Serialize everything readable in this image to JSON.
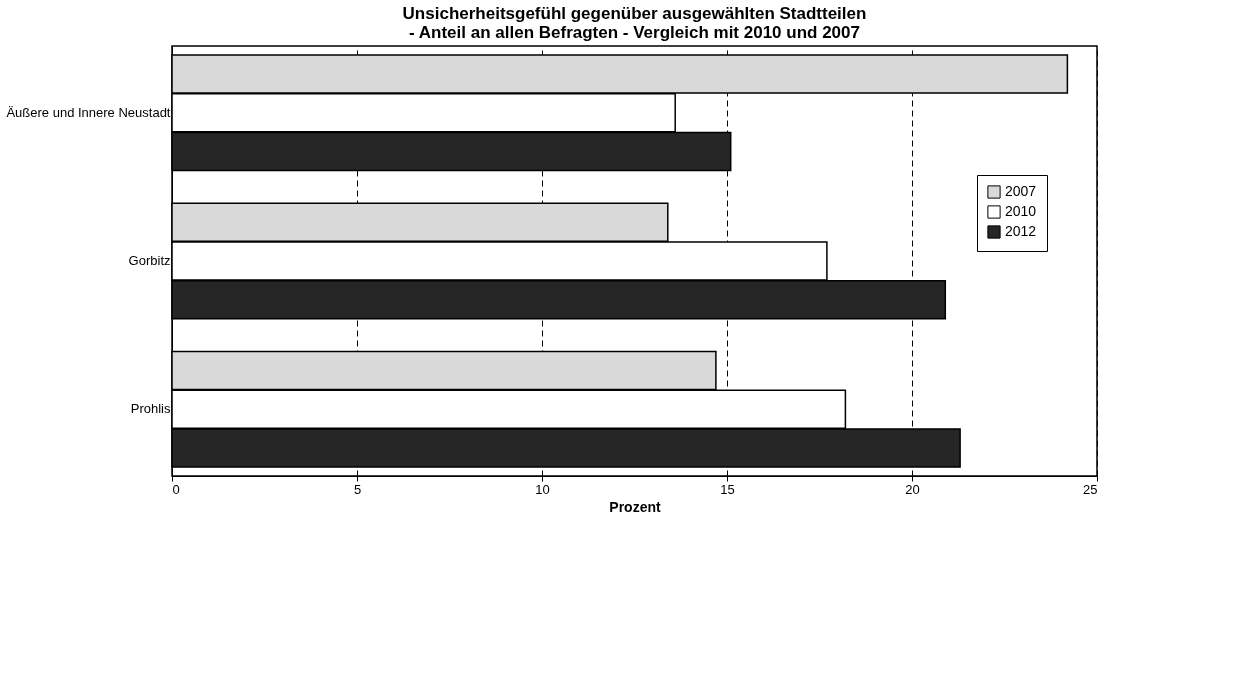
{
  "chart_data": {
    "type": "bar",
    "orientation": "horizontal",
    "title": [
      "Unsicherheitsgefühl gegenüber ausgewählten Stadtteilen",
      "- Anteil an allen Befragten - Vergleich mit 2010 und 2007"
    ],
    "xlabel": "Prozent",
    "categories": [
      "Äußere und Innere Neustadt",
      "Gorbitz",
      "Prohlis"
    ],
    "series": [
      {
        "name": "2007",
        "color": "#d9d9d9",
        "values": [
          24.2,
          13.4,
          14.7
        ]
      },
      {
        "name": "2010",
        "color": "#ffffff",
        "values": [
          13.6,
          17.7,
          18.2
        ]
      },
      {
        "name": "2012",
        "color": "#262626",
        "values": [
          15.1,
          20.9,
          21.3
        ]
      }
    ],
    "xlim": [
      0,
      25
    ],
    "xticks": [
      0,
      5,
      10,
      15,
      20,
      25
    ],
    "grid": "x",
    "legend": "right"
  }
}
